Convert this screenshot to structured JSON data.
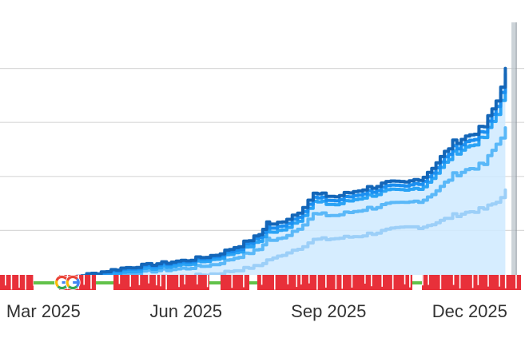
{
  "chart_data": {
    "type": "area",
    "x_tick_labels": [
      "Mar 2025",
      "Jun 2025",
      "Sep 2025",
      "Dec 2025"
    ],
    "x_tick_dates": [
      "2025-03-01",
      "2025-06-01",
      "2025-09-01",
      "2025-12-01"
    ],
    "xlim": [
      "2025-02-01",
      "2025-12-31"
    ],
    "ylim": [
      0,
      100
    ],
    "y_gridlines": [
      20,
      40,
      60,
      80
    ],
    "y_tick_labels_visible": false,
    "grid": true,
    "colors": {
      "grid": "#d9d9d9",
      "fill": "#cfeaff",
      "cursor": "#b7c0c8",
      "event_red": "#e8303a",
      "event_green": "#62c24a"
    },
    "series": [
      {
        "color": "#1466b8",
        "x": [
          "2025-02-22",
          "2025-03-10",
          "2025-04-01",
          "2025-04-20",
          "2025-05-10",
          "2025-06-01",
          "2025-06-20",
          "2025-07-05",
          "2025-07-18",
          "2025-07-23",
          "2025-07-27",
          "2025-08-05",
          "2025-08-12",
          "2025-08-22",
          "2025-09-05",
          "2025-09-20",
          "2025-10-08",
          "2025-10-20",
          "2025-11-01",
          "2025-11-12",
          "2025-11-20",
          "2025-12-01",
          "2025-12-10",
          "2025-12-18",
          "2025-12-24"
        ],
        "values": [
          1,
          2,
          4,
          6,
          7.5,
          9,
          11,
          14.5,
          18.5,
          23,
          22,
          24.5,
          27,
          33.5,
          32.5,
          35,
          37.5,
          37.5,
          40,
          47,
          52.5,
          55.5,
          58.5,
          68,
          80
        ]
      },
      {
        "color": "#1b8ff0",
        "x": [
          "2025-02-22",
          "2025-03-10",
          "2025-04-01",
          "2025-04-20",
          "2025-05-10",
          "2025-06-01",
          "2025-06-20",
          "2025-07-05",
          "2025-07-18",
          "2025-07-23",
          "2025-07-27",
          "2025-08-05",
          "2025-08-12",
          "2025-08-22",
          "2025-09-05",
          "2025-09-20",
          "2025-10-08",
          "2025-10-20",
          "2025-11-01",
          "2025-11-12",
          "2025-11-20",
          "2025-12-01",
          "2025-12-10",
          "2025-12-18",
          "2025-12-24"
        ],
        "values": [
          0.8,
          1.6,
          3.5,
          5.5,
          7,
          8.5,
          10.5,
          13.5,
          17.5,
          21.5,
          20.5,
          23,
          25.5,
          32,
          31,
          33.5,
          36,
          36,
          38.5,
          45,
          50.5,
          53.5,
          56.5,
          66,
          78
        ]
      },
      {
        "color": "#2aa3f5",
        "x": [
          "2025-02-22",
          "2025-03-10",
          "2025-04-01",
          "2025-04-20",
          "2025-05-10",
          "2025-06-01",
          "2025-06-20",
          "2025-07-05",
          "2025-07-18",
          "2025-07-23",
          "2025-07-27",
          "2025-08-05",
          "2025-08-12",
          "2025-08-22",
          "2025-09-05",
          "2025-09-20",
          "2025-10-08",
          "2025-10-20",
          "2025-11-01",
          "2025-11-12",
          "2025-11-20",
          "2025-12-01",
          "2025-12-10",
          "2025-12-18",
          "2025-12-24"
        ],
        "values": [
          0.5,
          1.2,
          3,
          4.5,
          6,
          7.5,
          9.5,
          12.5,
          16,
          20,
          19,
          21.5,
          24,
          30.5,
          29.5,
          32,
          34.5,
          34.5,
          36.5,
          43,
          48.5,
          51.5,
          54.5,
          63,
          75
        ]
      },
      {
        "color": "#5ab8f8",
        "x": [
          "2025-02-22",
          "2025-03-10",
          "2025-04-01",
          "2025-04-20",
          "2025-05-10",
          "2025-06-01",
          "2025-06-20",
          "2025-07-05",
          "2025-07-18",
          "2025-07-23",
          "2025-07-27",
          "2025-08-05",
          "2025-08-12",
          "2025-08-22",
          "2025-09-05",
          "2025-09-20",
          "2025-10-08",
          "2025-10-20",
          "2025-11-01",
          "2025-11-12",
          "2025-11-20",
          "2025-12-01",
          "2025-12-10",
          "2025-12-18",
          "2025-12-24"
        ],
        "values": [
          0.3,
          0.8,
          2,
          3.5,
          5,
          6,
          7.5,
          10.5,
          13,
          17,
          16,
          18.5,
          21,
          26,
          25.5,
          27.5,
          29.5,
          30,
          31.5,
          36,
          40.5,
          43,
          44.5,
          52,
          58
        ]
      },
      {
        "color": "#9ccff8",
        "x": [
          "2025-02-22",
          "2025-03-10",
          "2025-04-01",
          "2025-04-20",
          "2025-05-10",
          "2025-06-01",
          "2025-06-20",
          "2025-07-05",
          "2025-07-18",
          "2025-07-23",
          "2025-07-27",
          "2025-08-05",
          "2025-08-12",
          "2025-08-22",
          "2025-09-05",
          "2025-09-20",
          "2025-10-08",
          "2025-10-20",
          "2025-11-01",
          "2025-11-12",
          "2025-11-20",
          "2025-12-01",
          "2025-12-10",
          "2025-12-18",
          "2025-12-24"
        ],
        "values": [
          0.2,
          0.5,
          1,
          1.8,
          2.5,
          3,
          4,
          5.5,
          7,
          9,
          9.5,
          12,
          13.5,
          16.5,
          17,
          18,
          20,
          21,
          21.5,
          23.5,
          25.5,
          27,
          28,
          30.5,
          35
        ]
      }
    ],
    "events": [
      {
        "date": "2025-03-13",
        "icon": "google-icon"
      },
      {
        "date": "2025-03-20",
        "icon": "google-icon"
      }
    ]
  }
}
